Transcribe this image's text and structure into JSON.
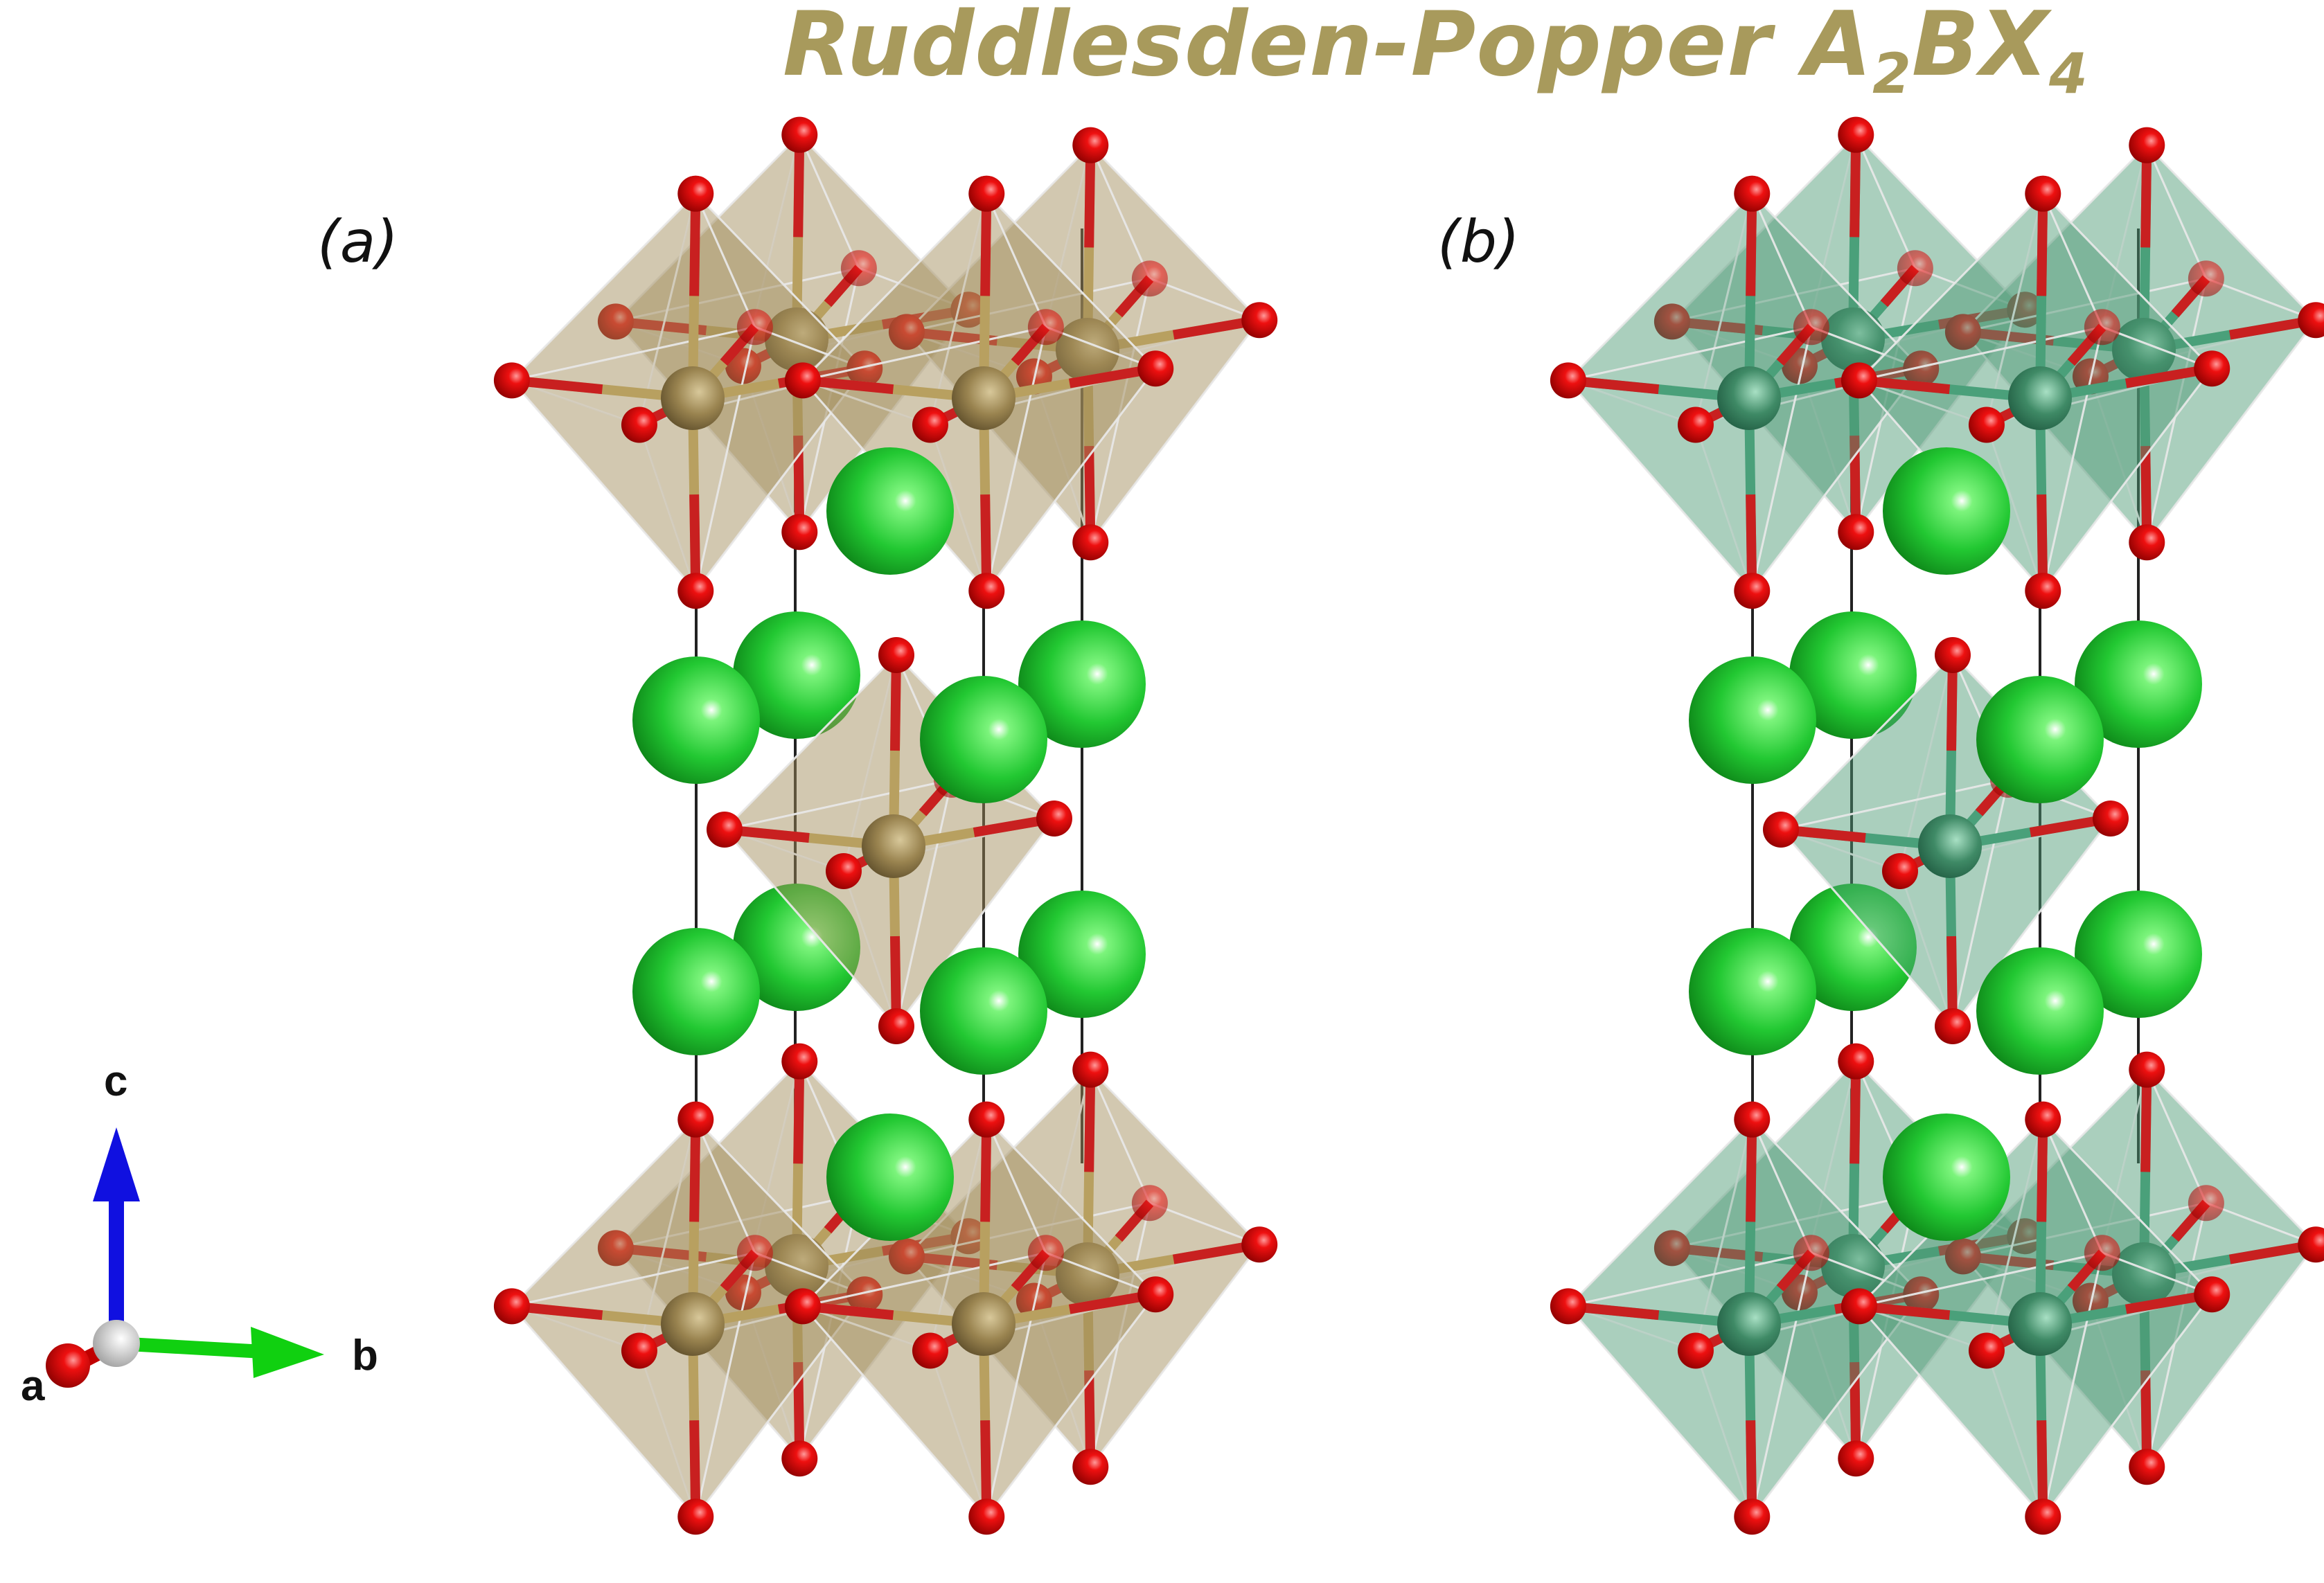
{
  "title": {
    "text": "Ruddlesden-Popper A",
    "sub1": "2",
    "mid": "BX",
    "sub2": "4"
  },
  "panels": [
    {
      "label": "(a)",
      "octahedron_color": "#a08c5a",
      "b_atom_color": "#9a8450"
    },
    {
      "label": "(b)",
      "octahedron_color": "#4f9a78",
      "b_atom_color": "#3f8a66"
    }
  ],
  "atom_colors": {
    "a_site": "#22c832",
    "x_site": "#e00000"
  },
  "axes": {
    "c": "c",
    "b": "b",
    "a": "a",
    "c_color": "#1010e0",
    "b_color": "#10d010",
    "a_color": "#c00000"
  }
}
